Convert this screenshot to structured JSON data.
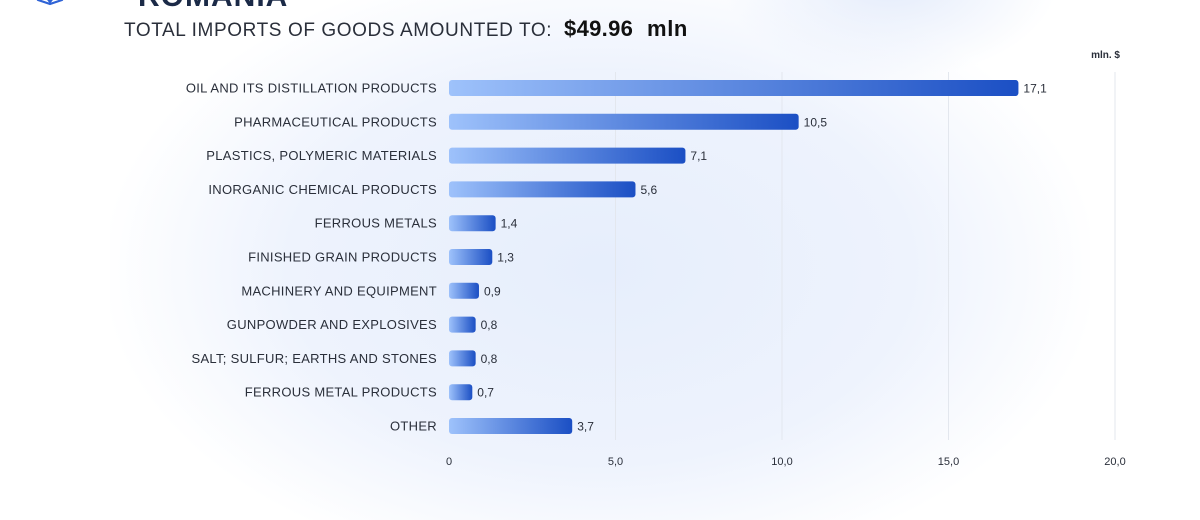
{
  "header": {
    "title": "ROMANIA",
    "subtitle_prefix": "TOTAL IMPORTS OF GOODS AMOUNTED TO:",
    "total_amount": "$49.96",
    "total_unit": "mln"
  },
  "colors": {
    "bar_start": "#9ec2fb",
    "bar_end": "#1b4fc4",
    "grid": "#e3e7ee",
    "label_text": "#2a2f3a"
  },
  "icons": {
    "logo": "globe-icon"
  },
  "chart_data": {
    "type": "bar",
    "orientation": "horizontal",
    "unit_label": "mln. $",
    "categories": [
      "OIL AND ITS DISTILLATION PRODUCTS",
      "PHARMACEUTICAL PRODUCTS",
      "PLASTICS, POLYMERIC MATERIALS",
      "INORGANIC CHEMICAL PRODUCTS",
      "FERROUS METALS",
      "FINISHED GRAIN PRODUCTS",
      "MACHINERY AND EQUIPMENT",
      "GUNPOWDER AND EXPLOSIVES",
      "SALT; SULFUR; EARTHS AND STONES",
      "FERROUS METAL PRODUCTS",
      "OTHER"
    ],
    "values": [
      17.1,
      10.5,
      7.1,
      5.6,
      1.4,
      1.3,
      0.9,
      0.8,
      0.8,
      0.7,
      3.7
    ],
    "value_labels": [
      "17,1",
      "10,5",
      "7,1",
      "5,6",
      "1,4",
      "1,3",
      "0,9",
      "0,8",
      "0,8",
      "0,7",
      "3,7"
    ],
    "x_ticks": [
      0,
      5,
      10,
      15,
      20
    ],
    "x_tick_labels": [
      "0",
      "5,0",
      "10,0",
      "15,0",
      "20,0"
    ],
    "xlim": [
      0,
      20
    ],
    "grid": true
  }
}
